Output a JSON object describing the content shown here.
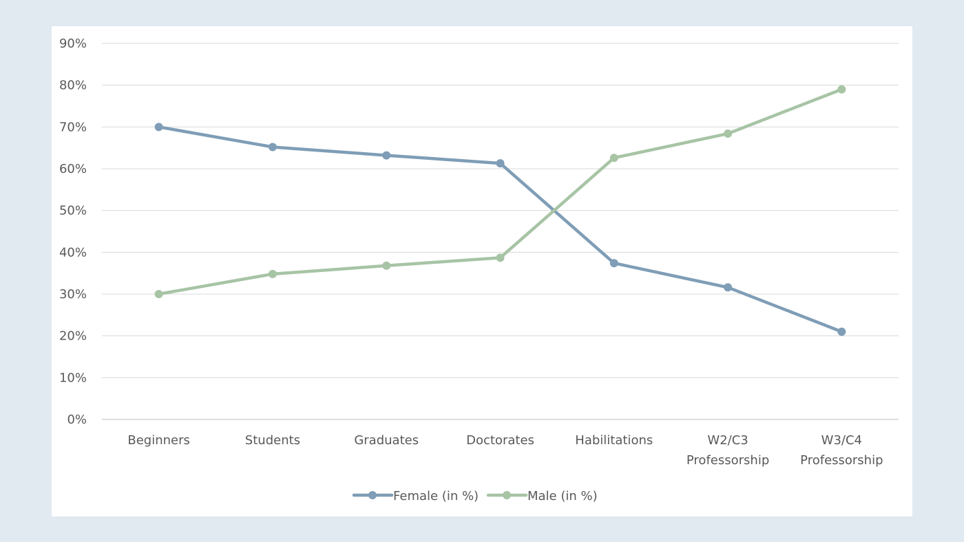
{
  "chart_data": {
    "type": "line",
    "title": "",
    "xlabel": "",
    "ylabel": "",
    "ylim": [
      0,
      90
    ],
    "yticks": [
      "0%",
      "10%",
      "20%",
      "30%",
      "40%",
      "50%",
      "60%",
      "70%",
      "80%",
      "90%"
    ],
    "grid": true,
    "legend_position": "bottom",
    "categories": [
      [
        "Beginners"
      ],
      [
        "Students"
      ],
      [
        "Graduates"
      ],
      [
        "Doctorates"
      ],
      [
        "Habilitations"
      ],
      [
        "W2/C3",
        "Professorship"
      ],
      [
        "W3/C4",
        "Professorship"
      ]
    ],
    "series": [
      {
        "name": "Female (in %)",
        "color": "#7f9db6",
        "values": [
          70.0,
          65.2,
          63.2,
          61.3,
          37.4,
          31.6,
          21.0
        ]
      },
      {
        "name": "Male (in %)",
        "color": "#a7c4a5",
        "values": [
          30.0,
          34.8,
          36.8,
          38.7,
          62.6,
          68.4,
          79.0
        ]
      }
    ]
  }
}
